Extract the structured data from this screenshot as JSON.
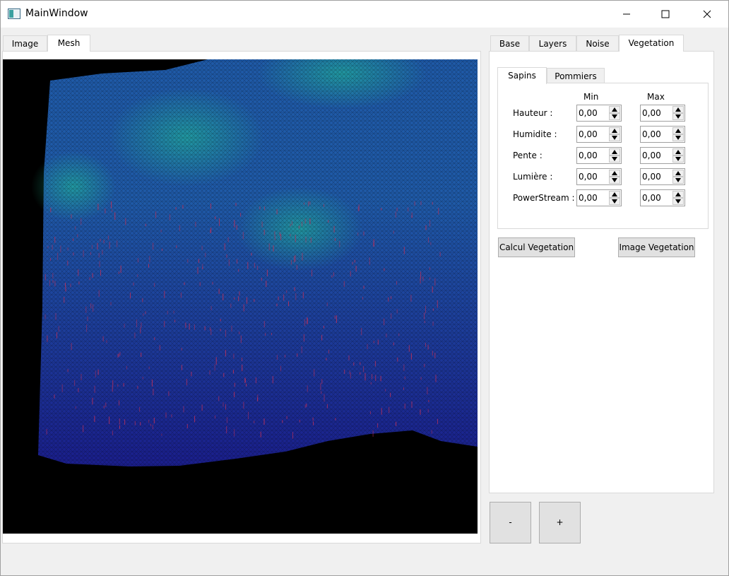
{
  "window": {
    "title": "MainWindow",
    "icons": {
      "app": "window-app-icon",
      "minimize": "minimize-icon",
      "maximize": "maximize-icon",
      "close": "close-icon"
    }
  },
  "left_tabs": [
    {
      "label": "Image",
      "active": false
    },
    {
      "label": "Mesh",
      "active": true
    }
  ],
  "right_tabs": [
    {
      "label": "Base",
      "active": false
    },
    {
      "label": "Layers",
      "active": false
    },
    {
      "label": "Noise",
      "active": false
    },
    {
      "label": "Vegetation",
      "active": true
    }
  ],
  "vegetation": {
    "sub_tabs": [
      {
        "label": "Sapins",
        "active": true
      },
      {
        "label": "Pommiers",
        "active": false
      }
    ],
    "columns": {
      "min": "Min",
      "max": "Max"
    },
    "rows": [
      {
        "label": "Hauteur :",
        "min": "0,00",
        "max": "0,00"
      },
      {
        "label": "Humidite :",
        "min": "0,00",
        "max": "0,00"
      },
      {
        "label": "Pente :",
        "min": "0,00",
        "max": "0,00"
      },
      {
        "label": "Lumière :",
        "min": "0,00",
        "max": "0,00"
      },
      {
        "label": "PowerStream :",
        "min": "0,00",
        "max": "0,00"
      }
    ],
    "buttons": {
      "calcul": "Calcul Vegetation",
      "image": "Image Vegetation"
    }
  },
  "zoom": {
    "minus": "-",
    "plus": "+"
  },
  "colors": {
    "mesh_low": "#1a1e8c",
    "mesh_mid": "#1f5aa8",
    "mesh_high": "#22c99a",
    "vegetation_marks": "#c0305a"
  }
}
